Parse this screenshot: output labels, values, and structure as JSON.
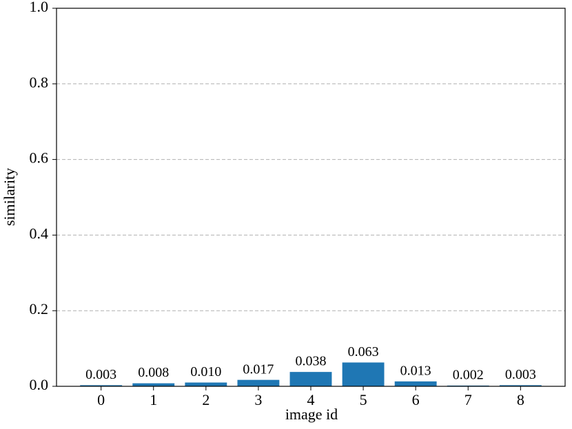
{
  "chart_data": {
    "type": "bar",
    "xlabel": "image id",
    "ylabel": "similarity",
    "categories": [
      "0",
      "1",
      "2",
      "3",
      "4",
      "5",
      "6",
      "7",
      "8"
    ],
    "values": [
      0.003,
      0.008,
      0.01,
      0.017,
      0.038,
      0.063,
      0.013,
      0.002,
      0.003
    ],
    "value_labels": [
      "0.003",
      "0.008",
      "0.010",
      "0.017",
      "0.038",
      "0.063",
      "0.013",
      "0.002",
      "0.003"
    ],
    "color": "#1f77b4",
    "ylim": [
      0,
      1.0
    ],
    "yticks": [
      {
        "value": 0,
        "label": "0.0"
      },
      0.2,
      0.4,
      0.6,
      0.8,
      {
        "value": 1.0,
        "label": "1.0"
      }
    ],
    "grid": true
  }
}
